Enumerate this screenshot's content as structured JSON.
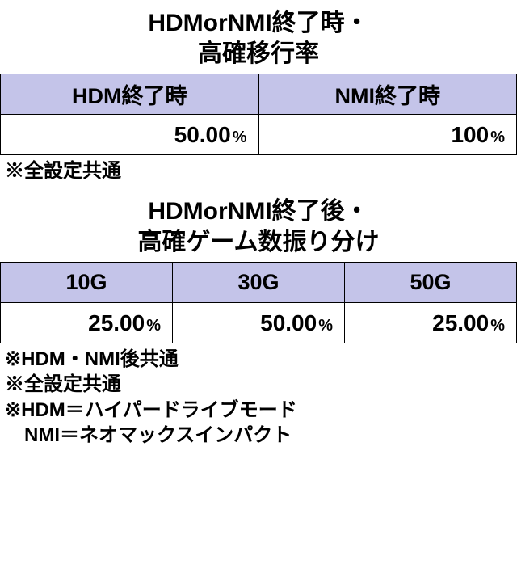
{
  "colors": {
    "header_bg": "#c4c4e9",
    "border": "#000000",
    "text": "#000000",
    "background": "#ffffff"
  },
  "typography": {
    "title_fontsize": 30,
    "header_fontsize": 27,
    "value_big_fontsize": 28,
    "pct_fontsize": 20,
    "note_fontsize": 24
  },
  "table1": {
    "title_line1": "HDMorNMI終了時・",
    "title_line2": "高確移行率",
    "headers": [
      "HDM終了時",
      "NMI終了時"
    ],
    "row": {
      "values": [
        "50.00",
        "100"
      ],
      "pct": "%"
    },
    "notes": [
      "※全設定共通"
    ]
  },
  "table2": {
    "title_line1": "HDMorNMI終了後・",
    "title_line2": "高確ゲーム数振り分け",
    "headers": [
      "10G",
      "30G",
      "50G"
    ],
    "row": {
      "values": [
        "25.00",
        "50.00",
        "25.00"
      ],
      "pct": "%"
    },
    "notes": [
      "※HDM・NMI後共通",
      "※全設定共通",
      "※HDM＝ハイパードライブモード",
      "　NMI＝ネオマックスインパクト"
    ]
  }
}
